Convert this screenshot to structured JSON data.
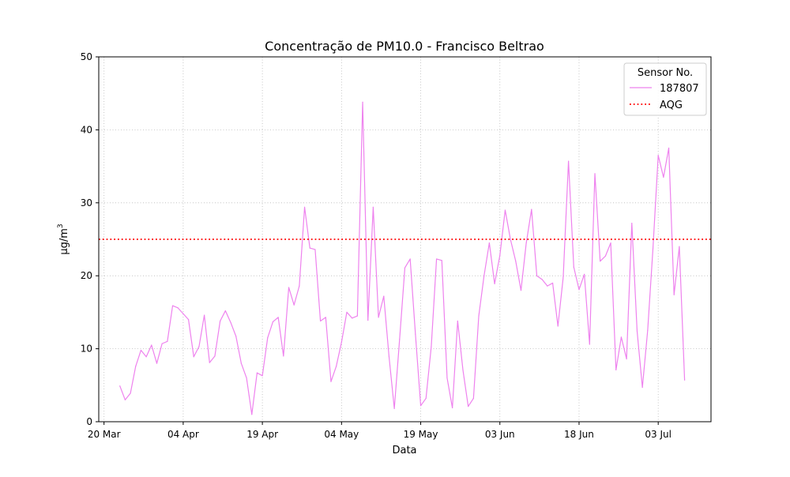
{
  "chart_data": {
    "type": "line",
    "title": "Concentração de PM10.0 - Francisco Beltrao",
    "xlabel": "Data",
    "ylabel_base": "µg/m",
    "ylabel_sup": "3",
    "x_ticks": [
      {
        "label": "20 Mar",
        "date": "2023-03-20"
      },
      {
        "label": "04 Apr",
        "date": "2023-04-04"
      },
      {
        "label": "19 Apr",
        "date": "2023-04-19"
      },
      {
        "label": "04 May",
        "date": "2023-05-04"
      },
      {
        "label": "19 May",
        "date": "2023-05-19"
      },
      {
        "label": "03 Jun",
        "date": "2023-06-03"
      },
      {
        "label": "18 Jun",
        "date": "2023-06-18"
      },
      {
        "label": "03 Jul",
        "date": "2023-07-03"
      }
    ],
    "x_range": [
      "2023-03-19",
      "2023-07-13"
    ],
    "ylim": [
      0,
      50
    ],
    "y_ticks": [
      0,
      10,
      20,
      30,
      40,
      50
    ],
    "grid": true,
    "legend_title": "Sensor No.",
    "legend_position": "top-right",
    "series": [
      {
        "name": "187807",
        "color": "#ee82ee",
        "points": [
          [
            "2023-03-23",
            4.9
          ],
          [
            "2023-03-24",
            3.0
          ],
          [
            "2023-03-25",
            3.9
          ],
          [
            "2023-03-26",
            7.6
          ],
          [
            "2023-03-27",
            9.8
          ],
          [
            "2023-03-28",
            8.9
          ],
          [
            "2023-03-29",
            10.5
          ],
          [
            "2023-03-30",
            8.0
          ],
          [
            "2023-03-31",
            10.7
          ],
          [
            "2023-04-01",
            11.0
          ],
          [
            "2023-04-02",
            15.9
          ],
          [
            "2023-04-03",
            15.6
          ],
          [
            "2023-04-04",
            14.8
          ],
          [
            "2023-04-05",
            14.0
          ],
          [
            "2023-04-06",
            8.9
          ],
          [
            "2023-04-07",
            10.3
          ],
          [
            "2023-04-08",
            14.6
          ],
          [
            "2023-04-09",
            8.1
          ],
          [
            "2023-04-10",
            9.0
          ],
          [
            "2023-04-11",
            13.8
          ],
          [
            "2023-04-12",
            15.2
          ],
          [
            "2023-04-13",
            13.6
          ],
          [
            "2023-04-14",
            11.7
          ],
          [
            "2023-04-15",
            8.0
          ],
          [
            "2023-04-16",
            6.0
          ],
          [
            "2023-04-17",
            1.0
          ],
          [
            "2023-04-18",
            6.7
          ],
          [
            "2023-04-19",
            6.3
          ],
          [
            "2023-04-20",
            11.5
          ],
          [
            "2023-04-21",
            13.7
          ],
          [
            "2023-04-22",
            14.3
          ],
          [
            "2023-04-23",
            9.0
          ],
          [
            "2023-04-24",
            18.4
          ],
          [
            "2023-04-25",
            16.0
          ],
          [
            "2023-04-26",
            18.6
          ],
          [
            "2023-04-27",
            29.4
          ],
          [
            "2023-04-28",
            23.8
          ],
          [
            "2023-04-29",
            23.6
          ],
          [
            "2023-04-30",
            13.8
          ],
          [
            "2023-05-01",
            14.3
          ],
          [
            "2023-05-02",
            5.5
          ],
          [
            "2023-05-03",
            7.6
          ],
          [
            "2023-05-04",
            10.9
          ],
          [
            "2023-05-05",
            15.0
          ],
          [
            "2023-05-06",
            14.2
          ],
          [
            "2023-05-07",
            14.5
          ],
          [
            "2023-05-08",
            43.8
          ],
          [
            "2023-05-09",
            13.9
          ],
          [
            "2023-05-10",
            29.4
          ],
          [
            "2023-05-11",
            14.3
          ],
          [
            "2023-05-12",
            17.2
          ],
          [
            "2023-05-13",
            8.9
          ],
          [
            "2023-05-14",
            1.8
          ],
          [
            "2023-05-15",
            11.3
          ],
          [
            "2023-05-16",
            21.1
          ],
          [
            "2023-05-17",
            22.3
          ],
          [
            "2023-05-18",
            12.0
          ],
          [
            "2023-05-19",
            2.2
          ],
          [
            "2023-05-20",
            3.2
          ],
          [
            "2023-05-21",
            10.3
          ],
          [
            "2023-05-22",
            22.3
          ],
          [
            "2023-05-23",
            22.1
          ],
          [
            "2023-05-24",
            6.0
          ],
          [
            "2023-05-25",
            1.9
          ],
          [
            "2023-05-26",
            13.8
          ],
          [
            "2023-05-27",
            7.1
          ],
          [
            "2023-05-28",
            2.1
          ],
          [
            "2023-05-29",
            3.2
          ],
          [
            "2023-05-30",
            14.5
          ],
          [
            "2023-05-31",
            20.0
          ],
          [
            "2023-06-01",
            24.5
          ],
          [
            "2023-06-02",
            18.9
          ],
          [
            "2023-06-03",
            22.8
          ],
          [
            "2023-06-04",
            29.0
          ],
          [
            "2023-06-05",
            25.0
          ],
          [
            "2023-06-06",
            22.0
          ],
          [
            "2023-06-07",
            18.0
          ],
          [
            "2023-06-08",
            24.5
          ],
          [
            "2023-06-09",
            29.1
          ],
          [
            "2023-06-10",
            20.0
          ],
          [
            "2023-06-11",
            19.5
          ],
          [
            "2023-06-12",
            18.6
          ],
          [
            "2023-06-13",
            19.0
          ],
          [
            "2023-06-14",
            13.1
          ],
          [
            "2023-06-15",
            19.8
          ],
          [
            "2023-06-16",
            35.7
          ],
          [
            "2023-06-17",
            21.2
          ],
          [
            "2023-06-18",
            18.1
          ],
          [
            "2023-06-19",
            20.2
          ],
          [
            "2023-06-20",
            10.6
          ],
          [
            "2023-06-21",
            34.0
          ],
          [
            "2023-06-22",
            22.0
          ],
          [
            "2023-06-23",
            22.7
          ],
          [
            "2023-06-24",
            24.5
          ],
          [
            "2023-06-25",
            7.1
          ],
          [
            "2023-06-26",
            11.6
          ],
          [
            "2023-06-27",
            8.6
          ],
          [
            "2023-06-28",
            27.2
          ],
          [
            "2023-06-29",
            12.4
          ],
          [
            "2023-06-30",
            4.7
          ],
          [
            "2023-07-01",
            12.5
          ],
          [
            "2023-07-02",
            23.7
          ],
          [
            "2023-07-03",
            36.5
          ],
          [
            "2023-07-04",
            33.5
          ],
          [
            "2023-07-05",
            37.5
          ],
          [
            "2023-07-06",
            17.4
          ],
          [
            "2023-07-07",
            24.0
          ],
          [
            "2023-07-08",
            5.7
          ]
        ]
      }
    ],
    "reference_line": {
      "name": "AQG",
      "value": 25,
      "color": "#ff0000",
      "style": "dotted"
    }
  }
}
